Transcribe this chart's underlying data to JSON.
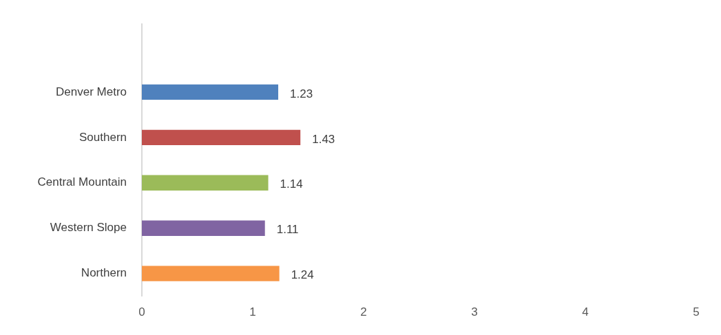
{
  "chart_data": {
    "type": "bar",
    "orientation": "horizontal",
    "categories": [
      null,
      "Denver Metro",
      "Southern",
      "Central Mountain",
      "Western Slope",
      "Northern"
    ],
    "values": [
      null,
      1.23,
      1.43,
      1.14,
      1.11,
      1.24
    ],
    "colors": [
      "#4f81bd",
      "#4f81bd",
      "#c0504d",
      "#9bbb59",
      "#8064a2",
      "#f79646"
    ],
    "xlim": [
      0,
      5
    ],
    "xticks": [
      0,
      1,
      2,
      3,
      4,
      5
    ],
    "grid": false,
    "legend": false,
    "data_labels": true
  }
}
